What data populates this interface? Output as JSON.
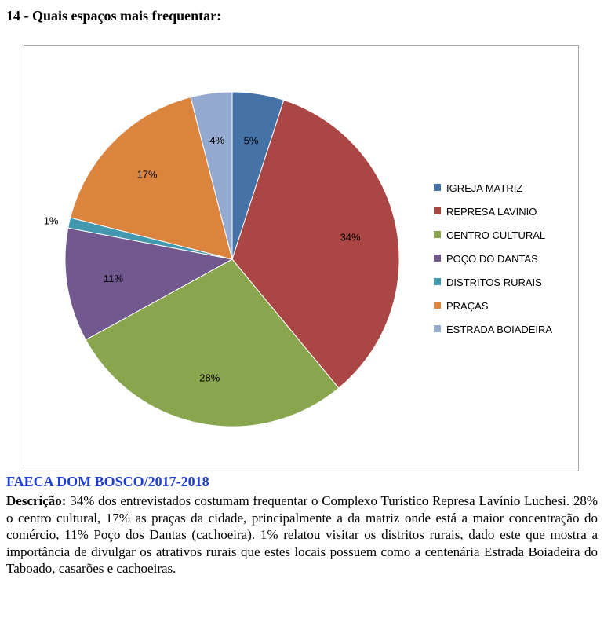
{
  "heading": "14 - Quais espaços mais frequentar:",
  "source": "FAECA DOM BOSCO/2017-2018",
  "description": {
    "label": "Descrição:",
    "text": " 34% dos entrevistados costumam frequentar o Complexo Turístico Represa Lavínio Luchesi. 28% o centro cultural, 17% as praças da cidade, principalmente a da matriz onde está a maior concentração do comércio, 11% Poço dos Dantas (cachoeira). 1% relatou visitar os distritos rurais, dado este que mostra a importância de divulgar os atrativos rurais que estes locais possuem como a centenária Estrada Boiadeira do Taboado, casarões e cachoeiras."
  },
  "chart_data": {
    "type": "pie",
    "title": "",
    "legend_position": "right",
    "slices": [
      {
        "label": "IGREJA MATRIZ",
        "value": 5,
        "display": "5%",
        "color": "#4572A7"
      },
      {
        "label": "REPRESA LAVINIO",
        "value": 34,
        "display": "34%",
        "color": "#AA4643"
      },
      {
        "label": "CENTRO CULTURAL",
        "value": 28,
        "display": "28%",
        "color": "#89A54E"
      },
      {
        "label": "POÇO DO DANTAS",
        "value": 11,
        "display": "11%",
        "color": "#71588F"
      },
      {
        "label": "DISTRITOS RURAIS",
        "value": 1,
        "display": "1%",
        "color": "#4198AF"
      },
      {
        "label": "PRAÇAS",
        "value": 17,
        "display": "17%",
        "color": "#DB843D"
      },
      {
        "label": "ESTRADA BOIADEIRA",
        "value": 4,
        "display": "4%",
        "color": "#93A9CF"
      }
    ]
  }
}
